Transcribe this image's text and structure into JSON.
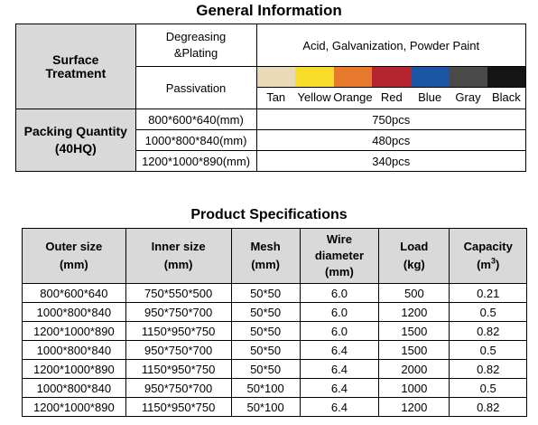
{
  "general": {
    "title": "General Information",
    "surface_label_1": "Surface",
    "surface_label_2": "Treatment",
    "degreasing_1": "Degreasing",
    "degreasing_2": "&Plating",
    "degreasing_value": "Acid, Galvanization, Powder Paint",
    "passivation": "Passivation",
    "colors": [
      {
        "name": "Tan",
        "hex": "#ead9b6"
      },
      {
        "name": "Yellow",
        "hex": "#f8dc2a"
      },
      {
        "name": "Orange",
        "hex": "#e7792d"
      },
      {
        "name": "Red",
        "hex": "#b5242f"
      },
      {
        "name": "Blue",
        "hex": "#1e56a6"
      },
      {
        "name": "Gray",
        "hex": "#4a4a4a"
      },
      {
        "name": "Black",
        "hex": "#151515"
      }
    ],
    "packing_label_1": "Packing Quantity",
    "packing_label_2": "(40HQ)",
    "packing": [
      {
        "size": "800*600*640(mm)",
        "qty": "750pcs"
      },
      {
        "size": "1000*800*840(mm)",
        "qty": "480pcs"
      },
      {
        "size": "1200*1000*890(mm)",
        "qty": "340pcs"
      }
    ]
  },
  "specs": {
    "title": "Product Specifications",
    "headers": {
      "outer_1": "Outer size",
      "outer_2": "(mm)",
      "inner_1": "Inner size",
      "inner_2": "(mm)",
      "mesh_1": "Mesh",
      "mesh_2": "(mm)",
      "wire_1": "Wire",
      "wire_2": "diameter",
      "wire_3": "(mm)",
      "load_1": "Load",
      "load_2": "(kg)",
      "cap_1": "Capacity",
      "cap_2": "(m",
      "cap_sup": "3",
      "cap_3": ")"
    },
    "rows": [
      [
        "800*600*640",
        "750*550*500",
        "50*50",
        "6.0",
        "500",
        "0.21"
      ],
      [
        "1000*800*840",
        "950*750*700",
        "50*50",
        "6.0",
        "1200",
        "0.5"
      ],
      [
        "1200*1000*890",
        "1150*950*750",
        "50*50",
        "6.0",
        "1500",
        "0.82"
      ],
      [
        "1000*800*840",
        "950*750*700",
        "50*50",
        "6.4",
        "1500",
        "0.5"
      ],
      [
        "1200*1000*890",
        "1150*950*750",
        "50*50",
        "6.4",
        "2000",
        "0.82"
      ],
      [
        "1000*800*840",
        "950*750*700",
        "50*100",
        "6.4",
        "1000",
        "0.5"
      ],
      [
        "1200*1000*890",
        "1150*950*750",
        "50*100",
        "6.4",
        "1200",
        "0.82"
      ]
    ]
  }
}
